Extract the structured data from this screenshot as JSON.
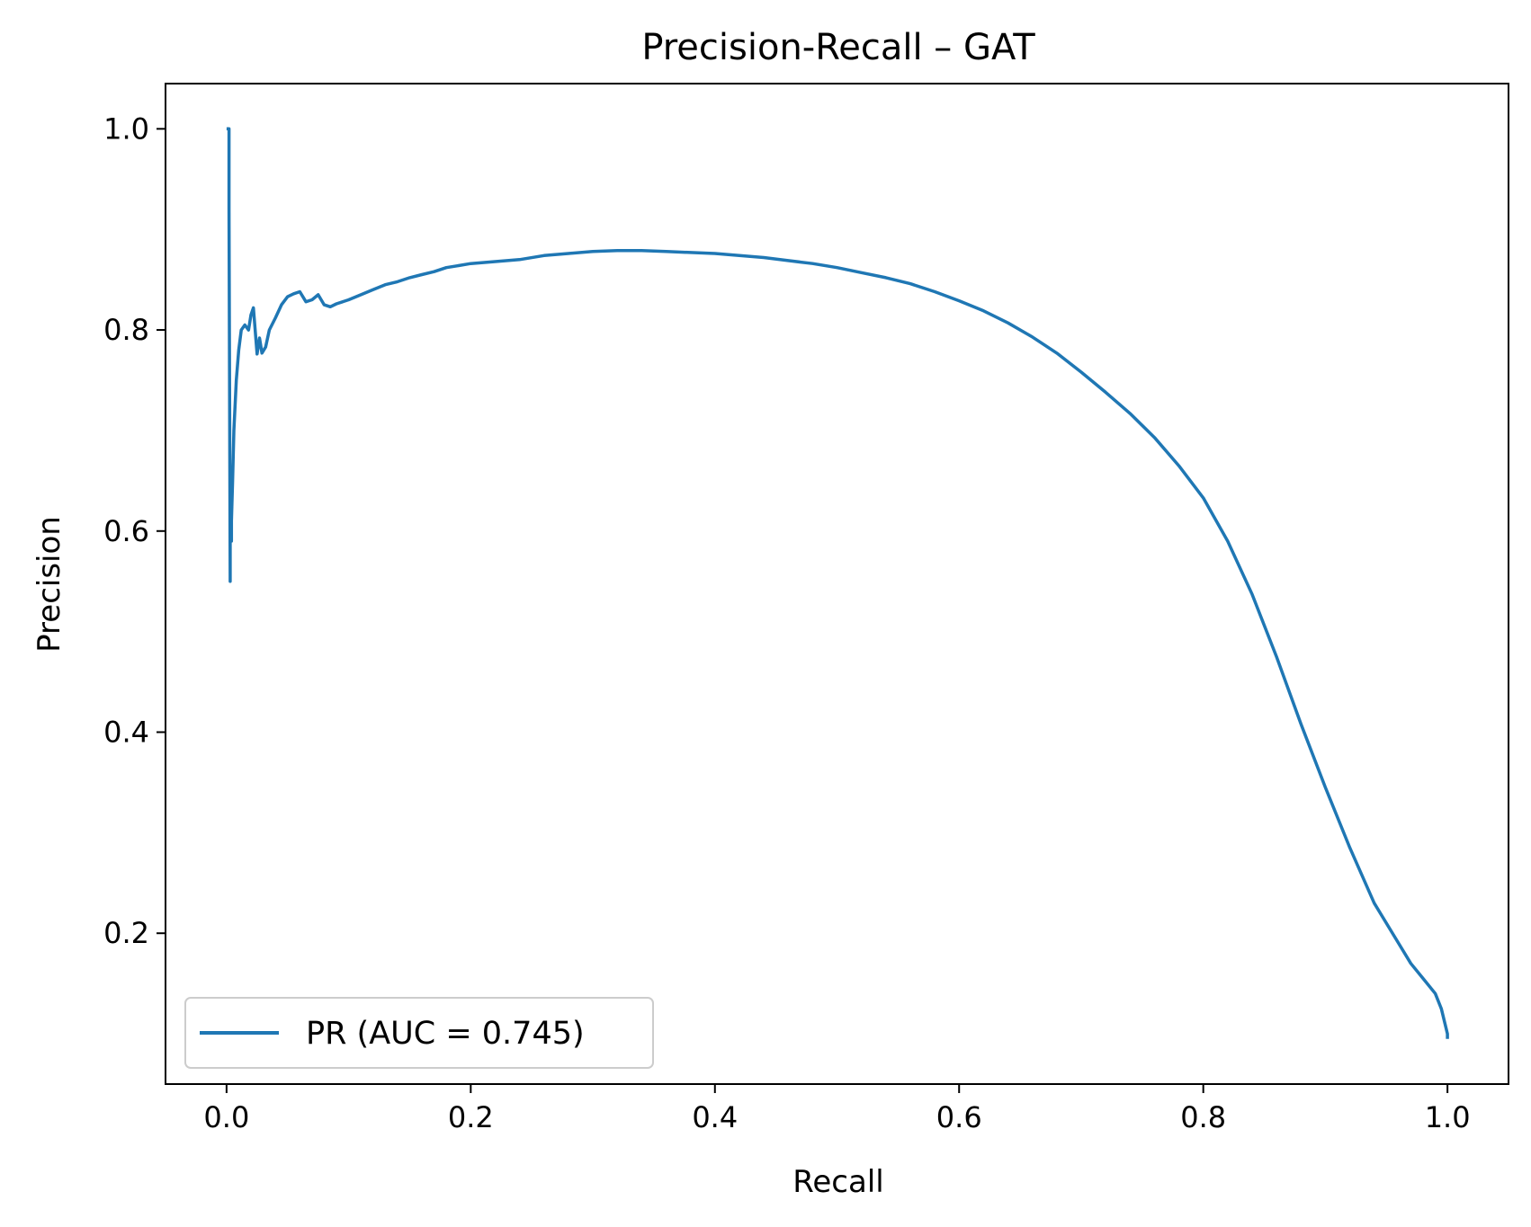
{
  "chart_data": {
    "type": "line",
    "title": "Precision-Recall – GAT",
    "xlabel": "Recall",
    "ylabel": "Precision",
    "xlim": [
      -0.05,
      1.05
    ],
    "ylim": [
      0.05,
      1.045
    ],
    "xticks": [
      0.0,
      0.2,
      0.4,
      0.6,
      0.8,
      1.0
    ],
    "xtick_labels": [
      "0.0",
      "0.2",
      "0.4",
      "0.6",
      "0.8",
      "1.0"
    ],
    "yticks": [
      0.2,
      0.4,
      0.6,
      0.8,
      1.0
    ],
    "ytick_labels": [
      "0.2",
      "0.4",
      "0.6",
      "0.8",
      "1.0"
    ],
    "grid": false,
    "legend_position": "lower-left",
    "series": [
      {
        "name": "PR (AUC = 0.745)",
        "color": "#1f77b4",
        "x": [
          0.0,
          0.002,
          0.002,
          0.003,
          0.003,
          0.004,
          0.004,
          0.005,
          0.006,
          0.008,
          0.01,
          0.012,
          0.015,
          0.018,
          0.02,
          0.022,
          0.025,
          0.027,
          0.029,
          0.032,
          0.035,
          0.04,
          0.045,
          0.05,
          0.055,
          0.06,
          0.065,
          0.07,
          0.075,
          0.08,
          0.085,
          0.09,
          0.1,
          0.11,
          0.12,
          0.13,
          0.14,
          0.15,
          0.16,
          0.17,
          0.18,
          0.19,
          0.2,
          0.22,
          0.24,
          0.26,
          0.28,
          0.3,
          0.32,
          0.34,
          0.36,
          0.38,
          0.4,
          0.42,
          0.44,
          0.46,
          0.48,
          0.5,
          0.52,
          0.54,
          0.56,
          0.58,
          0.6,
          0.62,
          0.64,
          0.66,
          0.68,
          0.7,
          0.72,
          0.74,
          0.76,
          0.78,
          0.8,
          0.82,
          0.84,
          0.86,
          0.88,
          0.9,
          0.92,
          0.94,
          0.96,
          0.97,
          0.98,
          0.99,
          0.995,
          0.998,
          1.0,
          1.0
        ],
        "y": [
          1.0,
          1.0,
          0.92,
          0.55,
          0.62,
          0.59,
          0.61,
          0.65,
          0.7,
          0.75,
          0.78,
          0.8,
          0.805,
          0.8,
          0.815,
          0.822,
          0.776,
          0.792,
          0.777,
          0.783,
          0.8,
          0.812,
          0.825,
          0.833,
          0.836,
          0.838,
          0.828,
          0.83,
          0.835,
          0.825,
          0.823,
          0.826,
          0.83,
          0.835,
          0.84,
          0.845,
          0.848,
          0.852,
          0.855,
          0.858,
          0.862,
          0.864,
          0.866,
          0.868,
          0.87,
          0.874,
          0.876,
          0.878,
          0.879,
          0.879,
          0.878,
          0.877,
          0.876,
          0.874,
          0.872,
          0.869,
          0.866,
          0.862,
          0.857,
          0.852,
          0.846,
          0.838,
          0.829,
          0.819,
          0.807,
          0.793,
          0.777,
          0.758,
          0.738,
          0.717,
          0.693,
          0.665,
          0.633,
          0.59,
          0.537,
          0.475,
          0.408,
          0.345,
          0.285,
          0.23,
          0.19,
          0.17,
          0.155,
          0.14,
          0.125,
          0.11,
          0.1,
          0.095
        ]
      }
    ]
  }
}
